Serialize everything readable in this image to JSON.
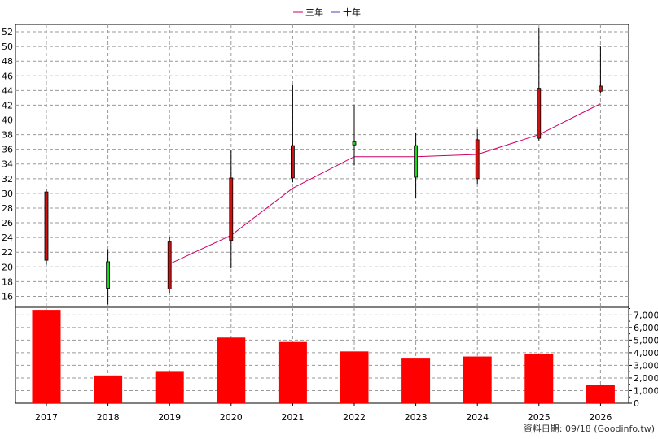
{
  "chart_data": [
    {
      "type": "candlestick",
      "legend": [
        {
          "label": "三年",
          "color": "#cc0066"
        },
        {
          "label": "十年",
          "color": "#6633cc"
        }
      ],
      "legend_position": "top-center",
      "grid": true,
      "ylim": [
        14.5,
        53
      ],
      "yticks": [
        "16",
        "18",
        "20",
        "22",
        "24",
        "26",
        "28",
        "30",
        "32",
        "34",
        "36",
        "38",
        "40",
        "42",
        "44",
        "46",
        "48",
        "50",
        "52"
      ],
      "categories": [
        "2017",
        "2018",
        "2019",
        "2020",
        "2021",
        "2022",
        "2023",
        "2024",
        "2025",
        "2026"
      ],
      "candles": [
        {
          "x": "2017",
          "open": 20.9,
          "close": 30.2,
          "high": 30.6,
          "low": 20.3
        },
        {
          "x": "2018",
          "open": 20.7,
          "close": 17.1,
          "high": 22.4,
          "low": 14.9
        },
        {
          "x": "2019",
          "open": 17.0,
          "close": 23.4,
          "high": 24.1,
          "low": 16.4
        },
        {
          "x": "2020",
          "open": 23.6,
          "close": 32.1,
          "high": 35.9,
          "low": 19.8
        },
        {
          "x": "2021",
          "open": 32.1,
          "close": 36.5,
          "high": 44.7,
          "low": 31.5
        },
        {
          "x": "2022",
          "open": 37.0,
          "close": 36.6,
          "high": 42.0,
          "low": 33.8
        },
        {
          "x": "2023",
          "open": 36.5,
          "close": 32.2,
          "high": 38.3,
          "low": 29.3
        },
        {
          "x": "2024",
          "open": 32.0,
          "close": 37.3,
          "high": 38.7,
          "low": 31.3
        },
        {
          "x": "2025",
          "open": 37.5,
          "close": 44.3,
          "high": 52.5,
          "low": 37.2
        },
        {
          "x": "2026",
          "open": 43.9,
          "close": 44.6,
          "high": 50.0,
          "low": 43.7
        }
      ],
      "up_color": "#cc1111",
      "down_color": "#11dd11",
      "series": [
        {
          "name": "三年",
          "color": "#cc0066",
          "x": [
            "2019",
            "2020",
            "2021",
            "2022",
            "2023",
            "2024",
            "2025",
            "2026"
          ],
          "values": [
            20.4,
            24.3,
            30.7,
            35.0,
            35.0,
            35.3,
            38.0,
            42.2
          ]
        }
      ]
    },
    {
      "type": "bar",
      "categories": [
        "2017",
        "2018",
        "2019",
        "2020",
        "2021",
        "2022",
        "2023",
        "2024",
        "2025",
        "2026"
      ],
      "values": [
        7400,
        2200,
        2550,
        5200,
        4850,
        4100,
        3600,
        3700,
        3900,
        1450
      ],
      "bar_color": "#ff0000",
      "ylim": [
        0,
        7600
      ],
      "yticks": [
        "0",
        "1,000",
        "2,000",
        "3,000",
        "4,000",
        "5,000",
        "6,000",
        "7,000"
      ]
    }
  ],
  "footer": {
    "source_text": "資料日期: 09/18  (Goodinfo.tw)"
  }
}
